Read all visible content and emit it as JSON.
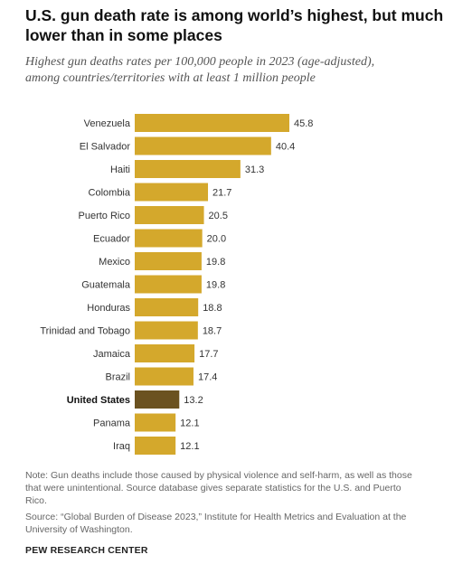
{
  "header": {
    "title": "U.S. gun death rate is among world’s highest, but much lower than in some places",
    "subtitle": "Highest gun deaths rates per 100,000 people in 2023 (age-adjusted), among countries/territories with at least 1 million people"
  },
  "footer": {
    "note": "Note: Gun deaths include those caused by physical violence and self-harm, as well as those that were unintentional. Source database gives separate statistics for the U.S. and Puerto Rico.",
    "source": "Source: “Global Burden of Disease 2023,” Institute for Health Metrics and Evaluation at the University of Washington.",
    "brand": "PEW RESEARCH CENTER"
  },
  "colors": {
    "bar": "#d4a82c",
    "highlight": "#6b5220",
    "label": "#333333"
  },
  "chart_data": {
    "type": "bar",
    "orientation": "horizontal",
    "categories": [
      "Venezuela",
      "El Salvador",
      "Haiti",
      "Colombia",
      "Puerto Rico",
      "Ecuador",
      "Mexico",
      "Guatemala",
      "Honduras",
      "Trinidad and Tobago",
      "Jamaica",
      "Brazil",
      "United States",
      "Panama",
      "Iraq"
    ],
    "values": [
      45.8,
      40.4,
      31.3,
      21.7,
      20.5,
      20.0,
      19.8,
      19.8,
      18.8,
      18.7,
      17.7,
      17.4,
      13.2,
      12.1,
      12.1
    ],
    "value_labels": [
      "45.8",
      "40.4",
      "31.3",
      "21.7",
      "20.5",
      "20.0",
      "19.8",
      "19.8",
      "18.8",
      "18.7",
      "17.7",
      "17.4",
      "13.2",
      "12.1",
      "12.1"
    ],
    "highlight": "United States",
    "xlim": [
      0,
      45.8
    ],
    "grid": false,
    "legend": "none"
  }
}
